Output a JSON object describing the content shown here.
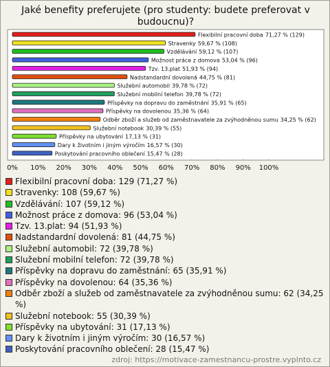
{
  "chart_data": {
    "type": "bar",
    "orientation": "horizontal",
    "title": "Jaké benefity preferujete (pro studenty: budete preferovat v budoucnu)?",
    "categories": [
      "Flexibilní pracovní doba",
      "Stravenky",
      "Vzdělávání",
      "Možnost práce z domova",
      "Tzv. 13.plat",
      "Nadstandardní dovolená",
      "Služební automobil",
      "Služební mobilní telefon",
      "Příspěvky na dopravu do zaměstnání",
      "Příspěvky na dovolenou",
      "Odběr zboží a služeb od zaměstnavatele za zvýhodněnou sumu",
      "Služební notebook",
      "Příspěvky na ubytování",
      "Dary k životním i jiným výročím",
      "Poskytování pracovního oblečení"
    ],
    "values": [
      71.27,
      59.67,
      59.12,
      53.04,
      51.93,
      44.75,
      39.78,
      39.78,
      35.91,
      35.36,
      34.25,
      30.39,
      17.13,
      16.57,
      15.47
    ],
    "value_labels": [
      "71,27 % (129)",
      "59,67 % (108)",
      "59,12 % (107)",
      "53,04 % (96)",
      "51,93 % (94)",
      "44,75 % (81)",
      "39,78 % (72)",
      "39,78 % (72)",
      "35,91 % (65)",
      "35,36 % (64)",
      "34,25 % (62)",
      "30,39 % (55)",
      "17,13 % (31)",
      "16,57 % (30)",
      "15,47 % (28)"
    ],
    "legend_labels": [
      "Flexibilní pracovní doba: 129 (71,27 %)",
      "Stravenky: 108 (59,67 %)",
      "Vzdělávání: 107 (59,12 %)",
      "Možnost práce z domova: 96 (53,04 %)",
      "Tzv. 13.plat: 94 (51,93 %)",
      "Nadstandardní dovolená: 81 (44,75 %)",
      "Služební automobil: 72 (39,78 %)",
      "Služební mobilní telefon: 72 (39,78 %)",
      "Příspěvky na dopravu do zaměstnání: 65 (35,91 %)",
      "Příspěvky na dovolenou: 64 (35,36 %)",
      "Odběr zboží a služeb od zaměstnavatele za zvýhodněnou sumu: 62 (34,25 %)",
      "Služební notebook: 55 (30,39 %)",
      "Příspěvky na ubytování: 31 (17,13 %)",
      "Dary k životním i jiným výročím: 30 (16,57 %)",
      "Poskytování pracovního oblečení: 28 (15,47 %)"
    ],
    "colors": [
      "#e0201b",
      "#f0e020",
      "#20c020",
      "#4060e0",
      "#e020e0",
      "#e05010",
      "#a8f080",
      "#20a060",
      "#207880",
      "#e070c0",
      "#f08010",
      "#f0c020",
      "#80e030",
      "#6090f0",
      "#4060c0"
    ],
    "xlim": [
      0,
      100
    ],
    "xticks": [
      {
        "value": 0,
        "label": "0%"
      },
      {
        "value": 10,
        "label": "10%"
      },
      {
        "value": 20,
        "label": "20%"
      },
      {
        "value": 30,
        "label": "30%"
      },
      {
        "value": 40,
        "label": "40%"
      },
      {
        "value": 50,
        "label": "50%"
      },
      {
        "value": 60,
        "label": "60%"
      },
      {
        "value": 70,
        "label": "70%"
      },
      {
        "value": 80,
        "label": "80%"
      },
      {
        "value": 90,
        "label": "90%"
      },
      {
        "value": 100,
        "label": "100%"
      }
    ],
    "grid": false,
    "source": "zdroj: https://motivace-zamestnancu-prostre.vyplnto.cz"
  }
}
